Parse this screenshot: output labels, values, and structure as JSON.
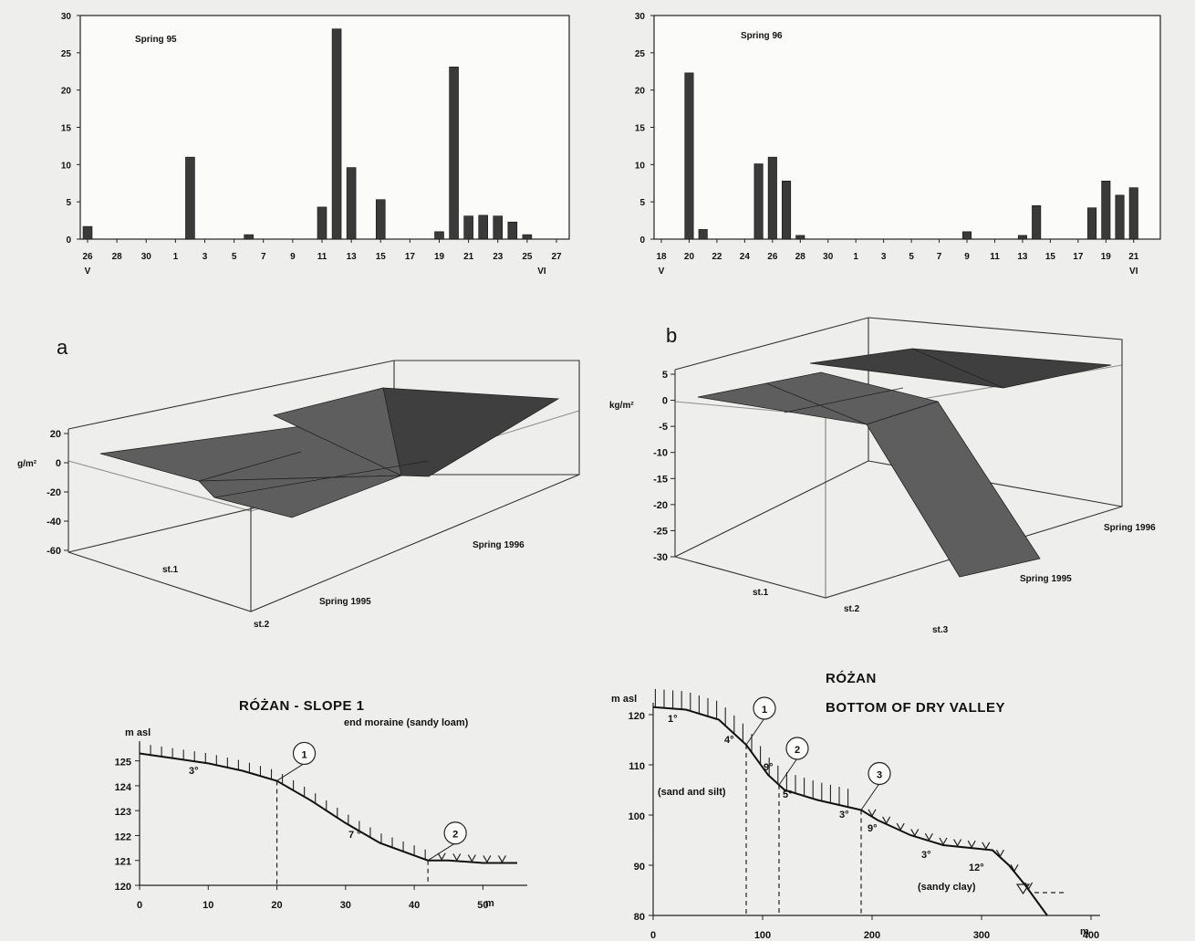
{
  "chart_data": [
    {
      "type": "bar",
      "title": "Spring 95",
      "ylim": [
        0,
        30
      ],
      "yticks": [
        "0",
        "5",
        "10",
        "15",
        "20",
        "25",
        "30"
      ],
      "xticks": [
        "26",
        "28",
        "30",
        "1",
        "3",
        "5",
        "7",
        "9",
        "11",
        "13",
        "15",
        "17",
        "19",
        "21",
        "23",
        "25",
        "27"
      ],
      "month_labels": [
        "V",
        "VI"
      ],
      "bars": [
        {
          "x": 26,
          "y": 1.7
        },
        {
          "x": 33,
          "y": 11.0
        },
        {
          "x": 37,
          "y": 0.6
        },
        {
          "x": 42,
          "y": 4.3
        },
        {
          "x": 43,
          "y": 28.2
        },
        {
          "x": 44,
          "y": 9.6
        },
        {
          "x": 46,
          "y": 5.3
        },
        {
          "x": 50,
          "y": 1.0
        },
        {
          "x": 51,
          "y": 23.1
        },
        {
          "x": 52,
          "y": 3.1
        },
        {
          "x": 53,
          "y": 3.2
        },
        {
          "x": 54,
          "y": 3.1
        },
        {
          "x": 55,
          "y": 2.3
        },
        {
          "x": 56,
          "y": 0.6
        }
      ]
    },
    {
      "type": "bar",
      "title": "Spring 96",
      "ylim": [
        0,
        30
      ],
      "yticks": [
        "0",
        "5",
        "10",
        "15",
        "20",
        "25",
        "30"
      ],
      "xticks": [
        "18",
        "20",
        "22",
        "24",
        "26",
        "28",
        "30",
        "1",
        "3",
        "5",
        "7",
        "9",
        "11",
        "13",
        "15",
        "17",
        "19",
        "21"
      ],
      "month_labels": [
        "V",
        "VI"
      ],
      "bars": [
        {
          "x": 20,
          "y": 22.3
        },
        {
          "x": 21,
          "y": 1.3
        },
        {
          "x": 25,
          "y": 10.1
        },
        {
          "x": 26,
          "y": 11.0
        },
        {
          "x": 27,
          "y": 7.8
        },
        {
          "x": 28,
          "y": 0.5
        },
        {
          "x": 40,
          "y": 1.0
        },
        {
          "x": 44,
          "y": 0.5
        },
        {
          "x": 45,
          "y": 4.5
        },
        {
          "x": 49,
          "y": 4.2
        },
        {
          "x": 50,
          "y": 7.8
        },
        {
          "x": 51,
          "y": 5.9
        },
        {
          "x": 52,
          "y": 6.9
        }
      ]
    },
    {
      "type": "3d-surface",
      "panel_letter": "a",
      "unit": "g/m²",
      "zticks": [
        "20",
        "0",
        "-20",
        "-40",
        "-60"
      ],
      "zlim": [
        -60,
        20
      ],
      "stations": [
        "st.1",
        "st.2"
      ],
      "seasons": [
        "Spring 1995",
        "Spring 1996"
      ]
    },
    {
      "type": "3d-surface",
      "panel_letter": "b",
      "unit": "kg/m²",
      "zticks": [
        "5",
        "0",
        "-5",
        "-10",
        "-15",
        "-20",
        "-25",
        "-30"
      ],
      "zlim": [
        -30,
        5
      ],
      "stations": [
        "st.1",
        "st.2",
        "st.3"
      ],
      "seasons": [
        "Spring 1995",
        "Spring 1996"
      ]
    },
    {
      "type": "line",
      "title": "RÓŻAN - SLOPE 1",
      "subtitle": "end moraine (sandy loam)",
      "ylabel": "m asl",
      "xunit": "m",
      "xlim": [
        0,
        55
      ],
      "ylim": [
        120,
        125.5
      ],
      "xticks": [
        "0",
        "10",
        "20",
        "30",
        "40",
        "50"
      ],
      "yticks": [
        "120",
        "121",
        "122",
        "123",
        "124",
        "125"
      ],
      "profile_x": [
        0,
        5,
        10,
        15,
        20,
        25,
        30,
        35,
        40,
        42,
        45,
        50,
        55
      ],
      "profile_y": [
        125.3,
        125.1,
        124.9,
        124.6,
        124.2,
        123.4,
        122.5,
        121.7,
        121.2,
        121.0,
        121.0,
        120.9,
        120.9
      ],
      "slope_labels": [
        "3°",
        "7 °"
      ],
      "stations": [
        {
          "label": "1",
          "x": 20
        },
        {
          "label": "2",
          "x": 42
        }
      ]
    },
    {
      "type": "line",
      "title": "RÓŻAN",
      "subtitle": "BOTTOM OF DRY VALLEY",
      "ylabel": "m asl",
      "xunit": "m",
      "xlim": [
        0,
        400
      ],
      "ylim": [
        80,
        124
      ],
      "xticks": [
        "0",
        "100",
        "200",
        "300",
        "400"
      ],
      "yticks": [
        "80",
        "90",
        "100",
        "110",
        "120"
      ],
      "profile_x": [
        0,
        30,
        60,
        85,
        105,
        120,
        150,
        190,
        205,
        235,
        265,
        310,
        325,
        340,
        360
      ],
      "profile_y": [
        121.5,
        121,
        119,
        114,
        108,
        105,
        103,
        101,
        99,
        96,
        94,
        93,
        90,
        86,
        80
      ],
      "slope_labels": [
        "1°",
        "4°",
        "9°",
        "5°",
        "3°",
        "9°",
        "3°",
        "12°"
      ],
      "notes": [
        "(sand and silt)",
        "(sandy clay)"
      ],
      "stations": [
        {
          "label": "1",
          "x": 85
        },
        {
          "label": "2",
          "x": 115
        },
        {
          "label": "3",
          "x": 190
        }
      ]
    }
  ]
}
